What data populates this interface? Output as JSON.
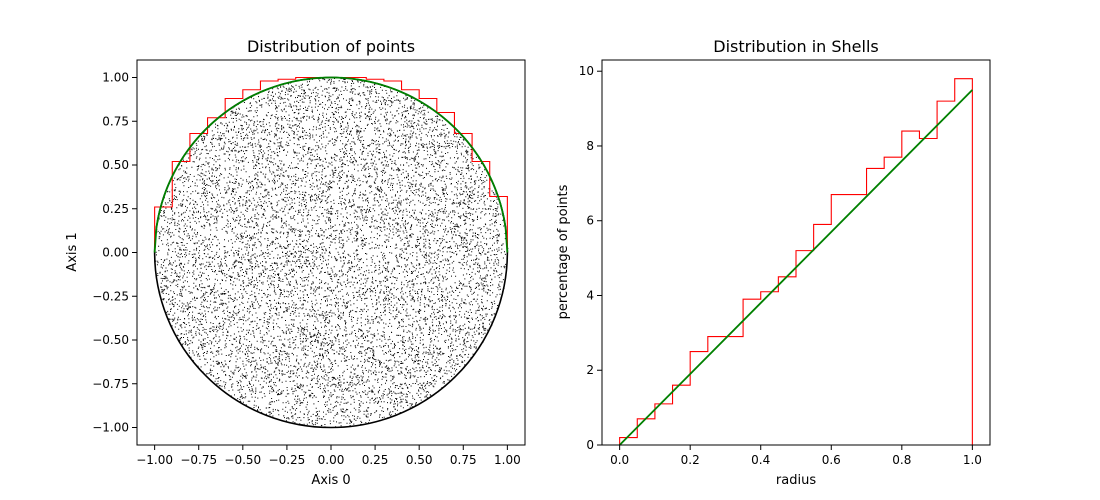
{
  "chart_data": [
    {
      "type": "scatter",
      "title": "Distribution of points",
      "xlabel": "Axis 0",
      "ylabel": "Axis 1",
      "xlim": [
        -1.1,
        1.1
      ],
      "ylim": [
        -1.1,
        1.1
      ],
      "xticks": [
        -1.0,
        -0.75,
        -0.5,
        -0.25,
        0.0,
        0.25,
        0.5,
        0.75,
        1.0
      ],
      "xtick_labels": [
        "−1.00",
        "−0.75",
        "−0.50",
        "−0.25",
        "0.00",
        "0.25",
        "0.50",
        "0.75",
        "1.00"
      ],
      "yticks": [
        -1.0,
        -0.75,
        -0.5,
        -0.25,
        0.0,
        0.25,
        0.5,
        0.75,
        1.0
      ],
      "ytick_labels": [
        "−1.00",
        "−0.75",
        "−0.50",
        "−0.25",
        "0.00",
        "0.25",
        "0.50",
        "0.75",
        "1.00"
      ],
      "scatter_points": 10000,
      "scatter_color": "#000000",
      "unit_circle_color": "#000000",
      "upper_semicircle_color": "#008000",
      "step_color": "#ff0000",
      "step_bin_edges": [
        -1.0,
        -0.9,
        -0.8,
        -0.7,
        -0.6,
        -0.5,
        -0.4,
        -0.3,
        -0.2,
        -0.1,
        0.0,
        0.1,
        0.2,
        0.3,
        0.4,
        0.5,
        0.6,
        0.7,
        0.8,
        0.9,
        1.0
      ],
      "step_values": [
        0.26,
        0.52,
        0.68,
        0.77,
        0.88,
        0.93,
        0.98,
        0.99,
        1.0,
        1.0,
        1.0,
        1.0,
        0.99,
        0.98,
        0.93,
        0.88,
        0.8,
        0.68,
        0.52,
        0.32
      ],
      "grid": false
    },
    {
      "type": "line",
      "title": "Distribution in Shells",
      "xlabel": "radius",
      "ylabel": "percentage of points",
      "xlim": [
        -0.05,
        1.05
      ],
      "ylim": [
        0,
        10.3
      ],
      "xticks": [
        0.0,
        0.2,
        0.4,
        0.6,
        0.8,
        1.0
      ],
      "xtick_labels": [
        "0.0",
        "0.2",
        "0.4",
        "0.6",
        "0.8",
        "1.0"
      ],
      "yticks": [
        0,
        2,
        4,
        6,
        8,
        10
      ],
      "ytick_labels": [
        "0",
        "2",
        "4",
        "6",
        "8",
        "10"
      ],
      "step_color": "#ff0000",
      "line_color": "#008000",
      "bin_edges": [
        0.0,
        0.05,
        0.1,
        0.15,
        0.2,
        0.25,
        0.3,
        0.35,
        0.4,
        0.45,
        0.5,
        0.55,
        0.6,
        0.65,
        0.7,
        0.75,
        0.8,
        0.85,
        0.9,
        0.95,
        1.0
      ],
      "values": [
        0.2,
        0.7,
        1.1,
        1.6,
        2.5,
        2.9,
        2.9,
        3.9,
        4.1,
        4.5,
        5.2,
        5.9,
        6.7,
        6.7,
        7.4,
        7.7,
        8.4,
        8.2,
        9.2,
        9.8
      ],
      "line_x": [
        0.0,
        1.0
      ],
      "line_y": [
        0.0,
        9.5
      ],
      "grid": false
    }
  ]
}
